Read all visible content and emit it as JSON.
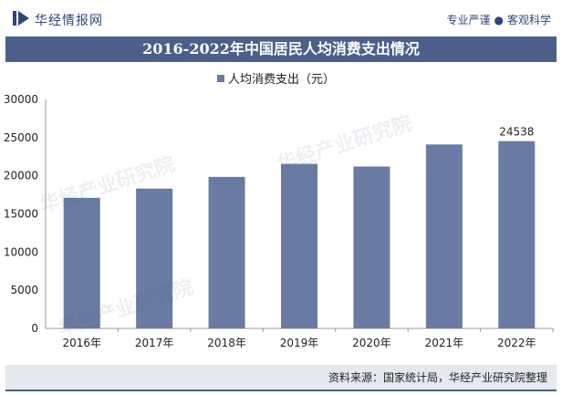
{
  "header": {
    "logo_text": "华经情报网",
    "motto_left": "专业严谨",
    "motto_right": "客观科学"
  },
  "title": "2016-2022年中国居民人均消费支出情况",
  "chart_data": {
    "type": "bar",
    "categories": [
      "2016年",
      "2017年",
      "2018年",
      "2019年",
      "2020年",
      "2021年",
      "2022年"
    ],
    "series": [
      {
        "name": "人均消费支出（元）",
        "values": [
          17111,
          18322,
          19853,
          21559,
          21210,
          24100,
          24538
        ],
        "data_labels": [
          "",
          "",
          "",
          "",
          "",
          "",
          "24538"
        ]
      }
    ],
    "ylim": [
      0,
      30000
    ],
    "yticks": [
      0,
      5000,
      10000,
      15000,
      20000,
      25000,
      30000
    ],
    "ytick_labels": [
      "0",
      "5000",
      "10000",
      "15000",
      "20000",
      "25000",
      "30000"
    ],
    "grid": false,
    "legend_position": "top",
    "bar_color": "#6a7ba3"
  },
  "footer": {
    "source": "资料来源：国家统计局，华经产业研究院整理"
  },
  "watermark": "华经产业研究院",
  "colors": {
    "title_bg": "#4b5f8a",
    "brand": "#2f4778"
  }
}
